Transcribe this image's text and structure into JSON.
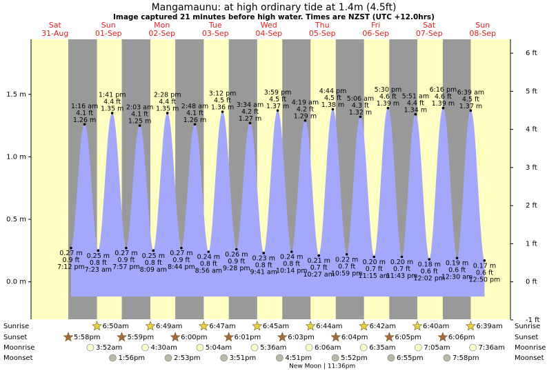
{
  "chart_data": {
    "type": "tide",
    "title": "Mangamaunu: at high  ordinary tide at 1.4m (4.5ft)",
    "subtitle": "Image captured 21 minutes before high water. Times are NZST (UTC +12.0hrs)",
    "ylim": [
      -0.3,
      1.94
    ],
    "yticks": [
      {
        "value": 0,
        "label": "0.0 m"
      },
      {
        "value": 0.5,
        "label": "0.5 m"
      },
      {
        "value": 1,
        "label": "1.0 m"
      },
      {
        "value": 1.5,
        "label": "1.5 m"
      }
    ],
    "y2lim": [
      -0.984,
      6.365
    ],
    "y2ticks": [
      {
        "value": -1,
        "label": "-1 ft"
      },
      {
        "value": 0,
        "label": "0 ft"
      },
      {
        "value": 1,
        "label": "1 ft"
      },
      {
        "value": 2,
        "label": "2 ft"
      },
      {
        "value": 3,
        "label": "3 ft"
      },
      {
        "value": 4,
        "label": "4 ft"
      },
      {
        "value": 5,
        "label": "5 ft"
      },
      {
        "value": 6,
        "label": "6 ft"
      }
    ],
    "colors": {
      "day": "#ffffc4",
      "night": "#999999",
      "tide": "#a3a8fb",
      "date": "#e02020",
      "sunrise": "#e8d040",
      "sunset": "#a86a3a",
      "moonrise": "#ffffcc",
      "moonset": "#b8b8a8"
    },
    "row_labels": [
      "Sunrise",
      "Sunset",
      "Moonrise",
      "Moonset"
    ],
    "days": [
      {
        "weekday": "Sat",
        "date": "31-Aug",
        "sunset": "5:58pm",
        "tides": [
          {
            "time": "7:12 pm",
            "m": 0.27,
            "m_label": "0.27 m",
            "ft_label": "0.9 ft"
          }
        ]
      },
      {
        "weekday": "Sun",
        "date": "01-Sep",
        "sunrise": "6:50am",
        "sunset": "5:59pm",
        "moonrise": "3:52am",
        "moonset": "1:56pm",
        "tides": [
          {
            "time": "1:16 am",
            "m": 1.26,
            "m_label": "1.26 m",
            "ft_label": "4.1 ft"
          },
          {
            "time": "7:23 am",
            "m": 0.25,
            "m_label": "0.25 m",
            "ft_label": "0.8 ft"
          },
          {
            "time": "1:41 pm",
            "m": 1.35,
            "m_label": "1.35 m",
            "ft_label": "4.4 ft"
          },
          {
            "time": "7:57 pm",
            "m": 0.27,
            "m_label": "0.27 m",
            "ft_label": "0.9 ft"
          }
        ]
      },
      {
        "weekday": "Mon",
        "date": "02-Sep",
        "sunrise": "6:49am",
        "sunset": "6:00pm",
        "moonrise": "4:30am",
        "moonset": "2:53pm",
        "tides": [
          {
            "time": "2:03 am",
            "m": 1.25,
            "m_label": "1.25 m",
            "ft_label": "4.1 ft"
          },
          {
            "time": "8:09 am",
            "m": 0.25,
            "m_label": "0.25 m",
            "ft_label": "0.8 ft"
          },
          {
            "time": "2:28 pm",
            "m": 1.35,
            "m_label": "1.35 m",
            "ft_label": "4.4 ft"
          },
          {
            "time": "8:44 pm",
            "m": 0.27,
            "m_label": "0.27 m",
            "ft_label": "0.9 ft"
          }
        ]
      },
      {
        "weekday": "Tue",
        "date": "03-Sep",
        "sunrise": "6:47am",
        "sunset": "6:01pm",
        "moonrise": "5:04am",
        "moonset": "3:51pm",
        "tides": [
          {
            "time": "2:48 am",
            "m": 1.26,
            "m_label": "1.26 m",
            "ft_label": "4.1 ft"
          },
          {
            "time": "8:56 am",
            "m": 0.24,
            "m_label": "0.24 m",
            "ft_label": "0.8 ft"
          },
          {
            "time": "3:12 pm",
            "m": 1.36,
            "m_label": "1.36 m",
            "ft_label": "4.5 ft"
          },
          {
            "time": "9:28 pm",
            "m": 0.26,
            "m_label": "0.26 m",
            "ft_label": "0.9 ft"
          }
        ]
      },
      {
        "weekday": "Wed",
        "date": "04-Sep",
        "sunrise": "6:45am",
        "sunset": "6:03pm",
        "moonrise": "5:36am",
        "moonset": "4:51pm",
        "tides": [
          {
            "time": "3:34 am",
            "m": 1.27,
            "m_label": "1.27 m",
            "ft_label": "4.2 ft"
          },
          {
            "time": "9:41 am",
            "m": 0.23,
            "m_label": "0.23 m",
            "ft_label": "0.8 ft"
          },
          {
            "time": "3:59 pm",
            "m": 1.37,
            "m_label": "1.37 m",
            "ft_label": "4.5 ft"
          },
          {
            "time": "10:14 pm",
            "m": 0.24,
            "m_label": "0.24 m",
            "ft_label": "0.8 ft"
          }
        ]
      },
      {
        "weekday": "Thu",
        "date": "05-Sep",
        "sunrise": "6:44am",
        "sunset": "6:04pm",
        "moonrise": "6:06am",
        "moonset": "5:52pm",
        "moon_phase": "New Moon | 11:36pm",
        "tides": [
          {
            "time": "4:19 am",
            "m": 1.29,
            "m_label": "1.29 m",
            "ft_label": "4.2 ft"
          },
          {
            "time": "10:27 am",
            "m": 0.21,
            "m_label": "0.21 m",
            "ft_label": "0.7 ft"
          },
          {
            "time": "4:44 pm",
            "m": 1.38,
            "m_label": "1.38 m",
            "ft_label": "4.5 ft"
          },
          {
            "time": "10:59 pm",
            "m": 0.22,
            "m_label": "0.22 m",
            "ft_label": "0.7 ft"
          }
        ]
      },
      {
        "weekday": "Fri",
        "date": "06-Sep",
        "sunrise": "6:42am",
        "sunset": "6:05pm",
        "moonrise": "6:35am",
        "moonset": "6:55pm",
        "tides": [
          {
            "time": "5:06 am",
            "m": 1.32,
            "m_label": "1.32 m",
            "ft_label": "4.3 ft"
          },
          {
            "time": "11:15 am",
            "m": 0.2,
            "m_label": "0.20 m",
            "ft_label": "0.7 ft"
          },
          {
            "time": "5:30 pm",
            "m": 1.39,
            "m_label": "1.39 m",
            "ft_label": "4.6 ft"
          },
          {
            "time": "11:43 pm",
            "m": 0.2,
            "m_label": "0.20 m",
            "ft_label": "0.7 ft"
          }
        ]
      },
      {
        "weekday": "Sat",
        "date": "07-Sep",
        "sunrise": "6:40am",
        "sunset": "6:06pm",
        "moonrise": "7:05am",
        "moonset": "7:58pm",
        "tides": [
          {
            "time": "5:51 am",
            "m": 1.34,
            "m_label": "1.34 m",
            "ft_label": "4.4 ft"
          },
          {
            "time": "12:02 pm",
            "m": 0.18,
            "m_label": "0.18 m",
            "ft_label": "0.6 ft"
          },
          {
            "time": "6:16 pm",
            "m": 1.39,
            "m_label": "1.39 m",
            "ft_label": "4.6 ft"
          }
        ]
      },
      {
        "weekday": "Sun",
        "date": "08-Sep",
        "sunrise": "6:39am",
        "moonrise": "7:36am",
        "tides": [
          {
            "time": "12:30 am",
            "m": 0.19,
            "m_label": "0.19 m",
            "ft_label": "0.6 ft"
          },
          {
            "time": "6:39 am",
            "m": 1.37,
            "m_label": "1.37 m",
            "ft_label": "4.5 ft"
          },
          {
            "time": "12:50 pm",
            "m": 0.17,
            "m_label": "0.17 m",
            "ft_label": "0.6 ft"
          }
        ]
      }
    ]
  }
}
